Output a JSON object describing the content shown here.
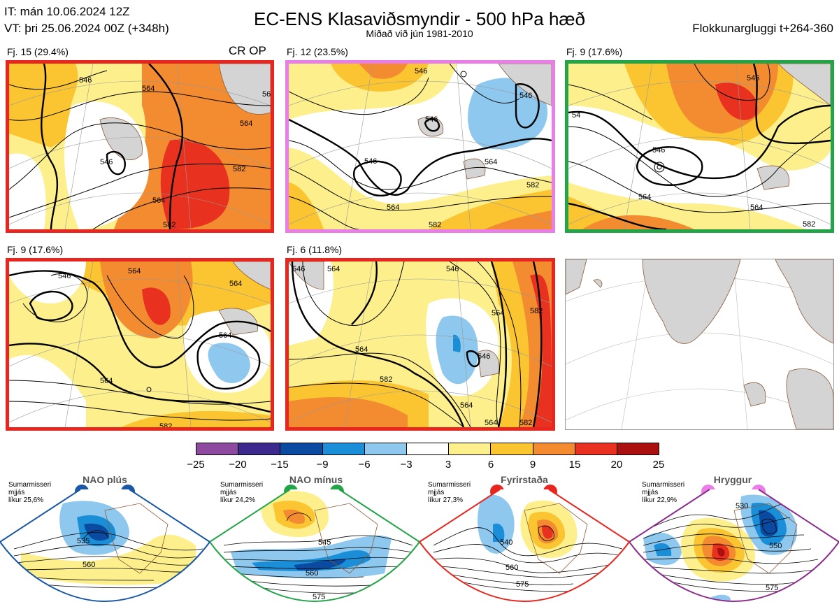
{
  "header": {
    "it": "IT: mán 10.06.2024 12Z",
    "vt": "VT: þri 25.06.2024 00Z  (+348h)",
    "title": "EC-ENS Klasaviðsmyndir - 500 hPa hæð",
    "subtitle": "Miðað við jún 1981-2010",
    "window": "Flokkunargluggi t+264-360"
  },
  "colors": {
    "land": "#d4d4d4",
    "coast": "#8a5a3a",
    "grid": "#999999",
    "red_border": "#e8261f",
    "pink_border": "#e97ee9",
    "green_border": "#23a447",
    "blue_border": "#1a58a6",
    "purple_border": "#8c2d8c"
  },
  "panels": [
    {
      "label": "Fj. 15 (29.4%)",
      "tag": "CR OP",
      "border": "#e8261f",
      "contours": [
        "546",
        "546",
        "564",
        "564",
        "564",
        "582",
        "582",
        "56"
      ]
    },
    {
      "label": "Fj. 12 (23.5%)",
      "tag": "",
      "border": "#e97ee9",
      "contours": [
        "546",
        "546",
        "546",
        "564",
        "564",
        "582",
        "582",
        "546"
      ]
    },
    {
      "label": "Fj. 9 (17.6%)",
      "tag": "",
      "border": "#23a447",
      "contours": [
        "546",
        "564",
        "564",
        "582",
        "54",
        "546"
      ]
    },
    {
      "label": "Fj. 9 (17.6%)",
      "tag": "",
      "border": "#e8261f",
      "contours": [
        "546",
        "564",
        "564",
        "564",
        "564",
        "582"
      ]
    },
    {
      "label": "Fj. 6 (11.8%)",
      "tag": "",
      "border": "#e8261f",
      "contours": [
        "546",
        "564",
        "564",
        "564",
        "582",
        "582",
        "546",
        "564",
        "546",
        "564",
        "582"
      ]
    }
  ],
  "colorbar": {
    "ticks": [
      "−25",
      "−20",
      "−15",
      "−9",
      "−6",
      "−3",
      "3",
      "6",
      "9",
      "15",
      "20",
      "25"
    ],
    "colors": [
      "#8e4a9e",
      "#3c2a8c",
      "#0a4aa0",
      "#1a8fd8",
      "#8ec8ee",
      "#ffffff",
      "#fdf08c",
      "#fbc531",
      "#f38b30",
      "#e8321f",
      "#aa1010"
    ]
  },
  "regimes": [
    {
      "name": "NAO plús",
      "season": "Sumarmisseri",
      "avg": "mjjás",
      "prob": "líkur 25,6%",
      "dot": "#1a58a6",
      "border": "#1a58a6",
      "contours": [
        "535",
        "560"
      ]
    },
    {
      "name": "NAO mínus",
      "season": "Sumarmisseri",
      "avg": "mjjás",
      "prob": "líkur 24,2%",
      "dot": "#23a447",
      "border": "#23a447",
      "contours": [
        "545",
        "560",
        "575"
      ]
    },
    {
      "name": "Fyrirstaða",
      "season": "Sumarmisseri",
      "avg": "mjjás",
      "prob": "líkur 27,3%",
      "dot": "#e8261f",
      "border": "#e8261f",
      "contours": [
        "540",
        "560",
        "575"
      ]
    },
    {
      "name": "Hryggur",
      "season": "Sumarmisseri",
      "avg": "mjjás",
      "prob": "líkur 22,9%",
      "dot": "#e97ee9",
      "border": "#8c2d8c",
      "contours": [
        "530",
        "550",
        "575"
      ]
    }
  ]
}
